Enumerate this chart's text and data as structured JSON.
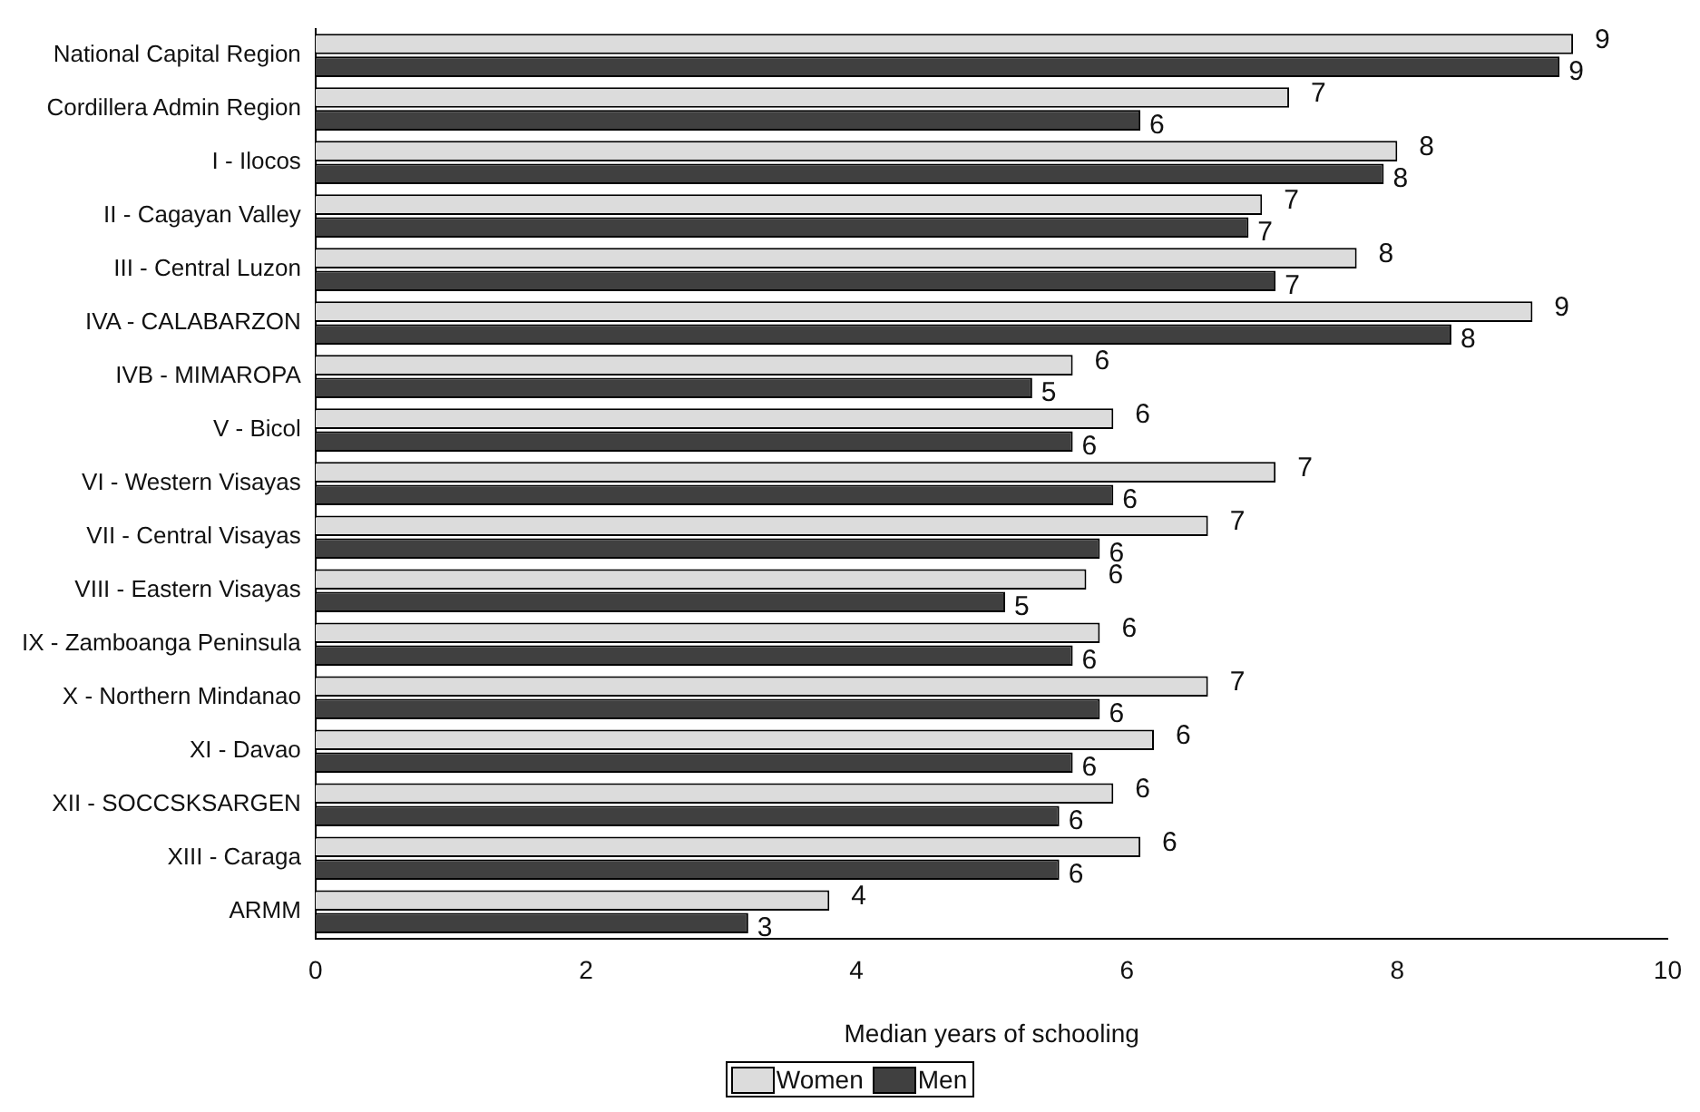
{
  "chart_data": {
    "type": "bar",
    "orientation": "horizontal",
    "xlabel": "Median years of schooling",
    "categories": [
      "National Capital Region",
      "Cordillera Admin Region",
      "I - Ilocos",
      "II - Cagayan Valley",
      "III - Central Luzon",
      "IVA - CALABARZON",
      "IVB - MIMAROPA",
      "V - Bicol",
      "VI - Western Visayas",
      "VII - Central Visayas",
      "VIII - Eastern Visayas",
      "IX - Zamboanga Peninsula",
      "X - Northern Mindanao",
      "XI - Davao",
      "XII - SOCCSKSARGEN",
      "XIII - Caraga",
      "ARMM"
    ],
    "series": [
      {
        "name": "Women",
        "color": "#dcdcdc",
        "values": [
          9.3,
          7.2,
          8.0,
          7.0,
          7.7,
          9.0,
          5.6,
          5.9,
          7.1,
          6.6,
          5.7,
          5.8,
          6.6,
          6.2,
          5.9,
          6.1,
          3.8
        ],
        "value_labels": [
          "9",
          "7",
          "8",
          "7",
          "8",
          "9",
          "6",
          "6",
          "7",
          "7",
          "6",
          "6",
          "7",
          "6",
          "6",
          "6",
          "4"
        ]
      },
      {
        "name": "Men",
        "color": "#404040",
        "values": [
          9.2,
          6.1,
          7.9,
          6.9,
          7.1,
          8.4,
          5.3,
          5.6,
          5.9,
          5.8,
          5.1,
          5.6,
          5.8,
          5.6,
          5.5,
          5.5,
          3.2
        ],
        "value_labels": [
          "9",
          "6",
          "8",
          "7",
          "7",
          "8",
          "5",
          "6",
          "6",
          "6",
          "5",
          "6",
          "6",
          "6",
          "6",
          "6",
          "3"
        ]
      }
    ],
    "xlim": [
      0,
      10
    ],
    "xticks": [
      0,
      2,
      4,
      6,
      8,
      10
    ],
    "grid": false,
    "legend": "bottom"
  }
}
